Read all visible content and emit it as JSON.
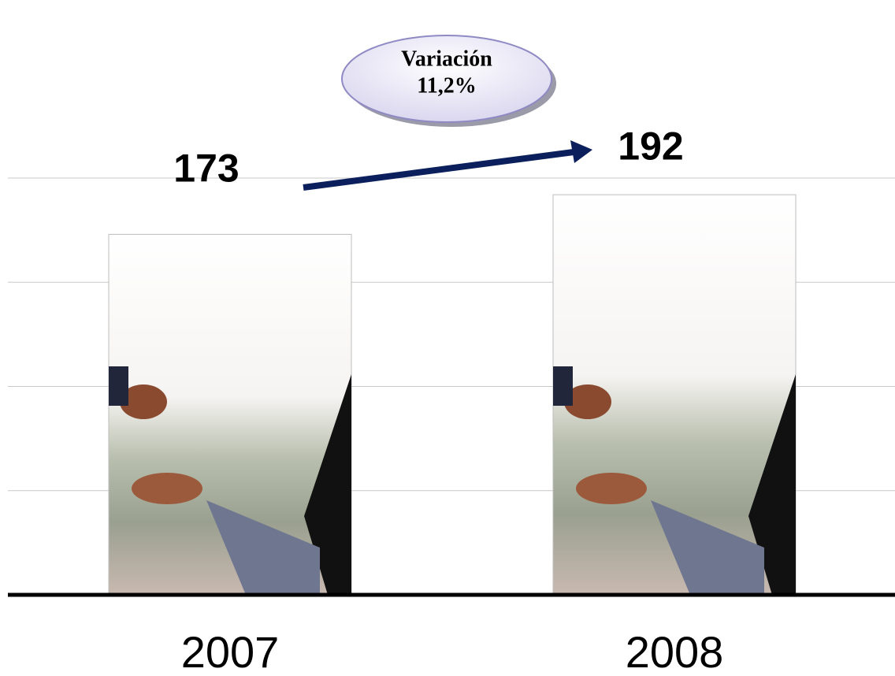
{
  "chart_data": {
    "type": "bar",
    "categories": [
      "2007",
      "2008"
    ],
    "values": [
      173,
      192
    ],
    "ylim": [
      0,
      200
    ],
    "yticks": [
      50,
      100,
      150,
      200
    ],
    "grid": true,
    "annotation": [
      "Variación",
      "11,2%"
    ]
  }
}
